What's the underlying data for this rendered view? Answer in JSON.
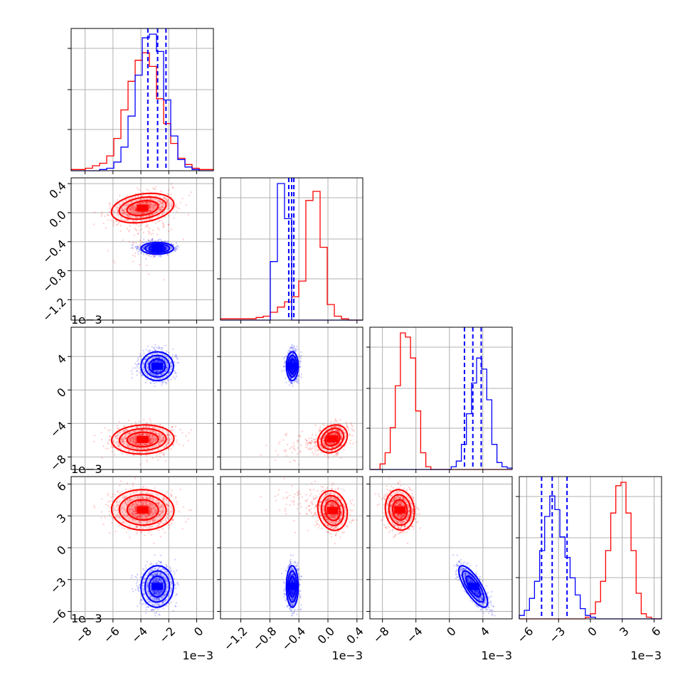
{
  "chart_data": {
    "type": "corner",
    "colors": {
      "series_a": "#ff0000",
      "series_b": "#0000ff",
      "grid": "#b0b0b0"
    },
    "series": [
      {
        "color": "#ff0000",
        "p0": {
          "mean": -0.0038,
          "sd": 0.0011
        },
        "p1": {
          "peak": 8e-05,
          "core_sd": 9e-05
        },
        "p2": {
          "mean": -0.0058,
          "sd": 0.0008
        },
        "p3": {
          "mean": 0.0035,
          "sd": 0.0009
        }
      },
      {
        "color": "#0000ff",
        "p0": {
          "mean": -0.0028,
          "sd": 0.0006
        },
        "p1": {
          "mean": -0.00049,
          "sd": 4e-05
        },
        "p2": {
          "mean": 0.0028,
          "sd": 0.0009
        },
        "p3": {
          "mean": -0.0036,
          "sd": 0.001
        }
      }
    ],
    "quantile_lines": {
      "color": "#0000ff",
      "p0": [
        -0.0035,
        -0.0028,
        -0.0022
      ],
      "p1": [
        -0.00054,
        -0.0005,
        -0.00047
      ],
      "p2": [
        0.0018,
        0.0028,
        0.0038
      ],
      "p3": [
        -0.0046,
        -0.0036,
        -0.0022
      ]
    },
    "axes": {
      "p0": {
        "range": [
          -0.009,
          0.0012
        ],
        "ticks": [
          -0.008,
          -0.006,
          -0.004,
          -0.002,
          0.0
        ],
        "tick_labels": [
          "−8",
          "−6",
          "−4",
          "−2",
          "0"
        ],
        "scale_label": "1e−3"
      },
      "p1": {
        "range": [
          -0.00148,
          0.00048
        ],
        "ticks": [
          -0.0012,
          -0.0008,
          -0.0004,
          0.0,
          0.0004
        ],
        "tick_labels": [
          "−1.2",
          "−0.8",
          "−0.4",
          "0.0",
          "0.4"
        ],
        "scale_label": "1e−3"
      },
      "p2": {
        "range": [
          -0.0095,
          0.0075
        ],
        "ticks": [
          -0.008,
          -0.004,
          0.0,
          0.004
        ],
        "tick_labels": [
          "−8",
          "−4",
          "0",
          "4"
        ],
        "scale_label": "1e−3"
      },
      "p3": {
        "range": [
          -0.0067,
          0.0067
        ],
        "ticks": [
          -0.006,
          -0.003,
          0.0,
          0.003,
          0.006
        ],
        "tick_labels": [
          "−6",
          "−3",
          "0",
          "3",
          "6"
        ],
        "scale_label": "1e−3"
      }
    },
    "histograms": {
      "p0": {
        "bins": 20,
        "red": [
          1,
          1,
          2,
          4,
          6,
          12,
          26,
          49,
          72,
          89,
          95,
          84,
          58,
          38,
          22,
          10,
          5,
          2,
          1,
          1
        ],
        "blue": [
          0,
          0,
          0,
          0,
          1,
          2,
          7,
          19,
          44,
          77,
          107,
          110,
          96,
          57,
          28,
          9,
          3,
          1,
          0,
          0
        ]
      },
      "p1": {
        "bins": 20,
        "red": [
          1,
          1,
          1,
          1,
          1,
          2,
          3,
          6,
          10,
          14,
          18,
          30,
          92,
          99,
          56,
          12,
          3,
          1,
          0,
          0
        ],
        "blue": [
          0,
          0,
          0,
          0,
          0,
          0,
          0,
          45,
          105,
          78,
          0,
          0,
          0,
          0,
          0,
          0,
          0,
          0,
          0,
          0
        ]
      },
      "p2": {
        "bins": 28,
        "red": [
          0,
          0,
          4,
          12,
          30,
          60,
          98,
          95,
          80,
          42,
          12,
          2,
          0,
          0,
          0,
          0,
          0,
          0,
          0,
          0,
          0,
          0,
          0,
          0,
          0,
          0,
          0,
          0
        ],
        "blue": [
          0,
          0,
          0,
          0,
          0,
          0,
          0,
          0,
          0,
          0,
          0,
          0,
          0,
          0,
          0,
          0,
          2,
          6,
          18,
          40,
          62,
          80,
          72,
          50,
          18,
          5,
          2,
          1
        ]
      },
      "p3": {
        "bins": 28,
        "red": [
          0,
          0,
          0,
          0,
          0,
          0,
          0,
          0,
          0,
          0,
          0,
          0,
          0,
          1,
          3,
          10,
          22,
          40,
          62,
          78,
          80,
          62,
          40,
          15,
          3,
          1,
          0,
          0
        ],
        "blue": [
          2,
          5,
          12,
          22,
          40,
          60,
          72,
          64,
          48,
          36,
          24,
          14,
          6,
          2,
          1,
          0,
          0,
          0,
          0,
          0,
          0,
          0,
          0,
          0,
          0,
          0,
          0,
          0
        ]
      }
    },
    "grid": true
  }
}
